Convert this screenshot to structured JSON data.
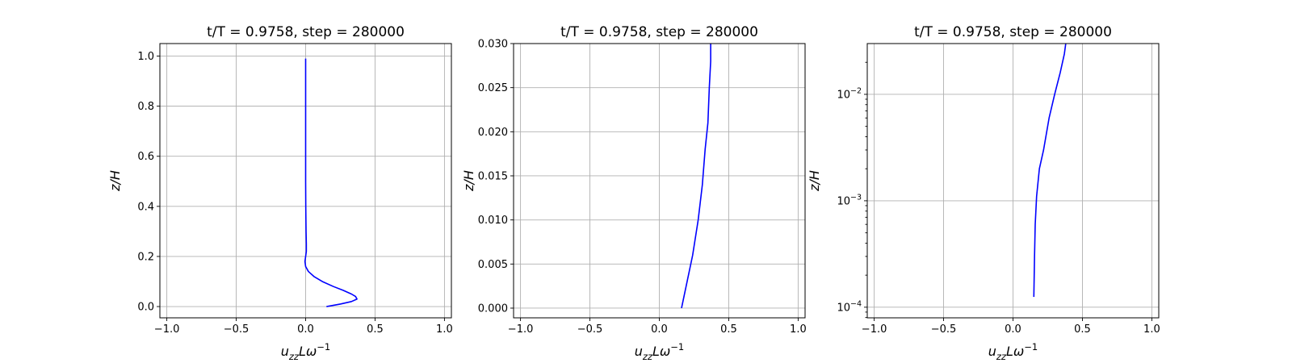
{
  "chart_data": [
    {
      "type": "line",
      "title": "t/T = 0.9758, step = 280000",
      "xlabel": "u_zz Lω⁻¹",
      "ylabel": "z/H",
      "xlim": [
        -1.05,
        1.05
      ],
      "ylim": [
        -0.045,
        1.05
      ],
      "yscale": "linear",
      "xticks": [
        -1.0,
        -0.5,
        0.0,
        0.5,
        1.0
      ],
      "xtick_labels": [
        "−1.0",
        "−0.5",
        "0.0",
        "0.5",
        "1.0"
      ],
      "yticks": [
        0.0,
        0.2,
        0.4,
        0.6,
        0.8,
        1.0
      ],
      "ytick_labels": [
        "0.0",
        "0.2",
        "0.4",
        "0.6",
        "0.8",
        "1.0"
      ],
      "grid": true,
      "series": [
        {
          "color": "#0000ff",
          "x": [
            0.15,
            0.25,
            0.33,
            0.37,
            0.36,
            0.33,
            0.27,
            0.2,
            0.12,
            0.06,
            0.02,
            0.0,
            -0.005,
            0.0,
            0.005,
            0.005,
            0.003,
            0.002,
            0.001,
            0.0,
            0.0,
            0.0,
            0.0,
            0.0
          ],
          "y": [
            0.0,
            0.01,
            0.02,
            0.03,
            0.04,
            0.05,
            0.065,
            0.08,
            0.1,
            0.12,
            0.14,
            0.16,
            0.18,
            0.2,
            0.22,
            0.25,
            0.3,
            0.35,
            0.4,
            0.5,
            0.6,
            0.7,
            0.85,
            0.99
          ]
        }
      ]
    },
    {
      "type": "line",
      "title": "t/T = 0.9758, step = 280000",
      "xlabel": "u_zz Lω⁻¹",
      "ylabel": "z/H",
      "xlim": [
        -1.05,
        1.05
      ],
      "ylim": [
        -0.0011,
        0.03
      ],
      "yscale": "linear",
      "xticks": [
        -1.0,
        -0.5,
        0.0,
        0.5,
        1.0
      ],
      "xtick_labels": [
        "−1.0",
        "−0.5",
        "0.0",
        "0.5",
        "1.0"
      ],
      "yticks": [
        0.0,
        0.005,
        0.01,
        0.015,
        0.02,
        0.025,
        0.03
      ],
      "ytick_labels": [
        "0.000",
        "0.005",
        "0.010",
        "0.015",
        "0.020",
        "0.025",
        "0.030"
      ],
      "grid": true,
      "series": [
        {
          "color": "#0000ff",
          "x": [
            0.16,
            0.2,
            0.24,
            0.28,
            0.31,
            0.33,
            0.35,
            0.36,
            0.37,
            0.37
          ],
          "y": [
            0.0,
            0.003,
            0.006,
            0.01,
            0.014,
            0.018,
            0.021,
            0.025,
            0.028,
            0.03
          ]
        }
      ]
    },
    {
      "type": "line",
      "title": "t/T = 0.9758, step = 280000",
      "xlabel": "u_zz Lω⁻¹",
      "ylabel": "z/H",
      "xlim": [
        -1.05,
        1.05
      ],
      "ylim": [
        7.95e-05,
        0.03
      ],
      "yscale": "log",
      "xticks": [
        -1.0,
        -0.5,
        0.0,
        0.5,
        1.0
      ],
      "xtick_labels": [
        "−1.0",
        "−0.5",
        "0.0",
        "0.5",
        "1.0"
      ],
      "yticks": [
        0.0001,
        0.001,
        0.01
      ],
      "ytick_labels": [
        {
          "base": "10",
          "exp": "−4"
        },
        {
          "base": "10",
          "exp": "−3"
        },
        {
          "base": "10",
          "exp": "−2"
        }
      ],
      "grid": true,
      "series": [
        {
          "color": "#0000ff",
          "x": [
            0.15,
            0.155,
            0.16,
            0.17,
            0.19,
            0.22,
            0.26,
            0.3,
            0.34,
            0.37,
            0.38
          ],
          "y": [
            0.000125,
            0.0003,
            0.0006,
            0.0011,
            0.002,
            0.003,
            0.006,
            0.01,
            0.016,
            0.024,
            0.03
          ]
        }
      ]
    }
  ]
}
